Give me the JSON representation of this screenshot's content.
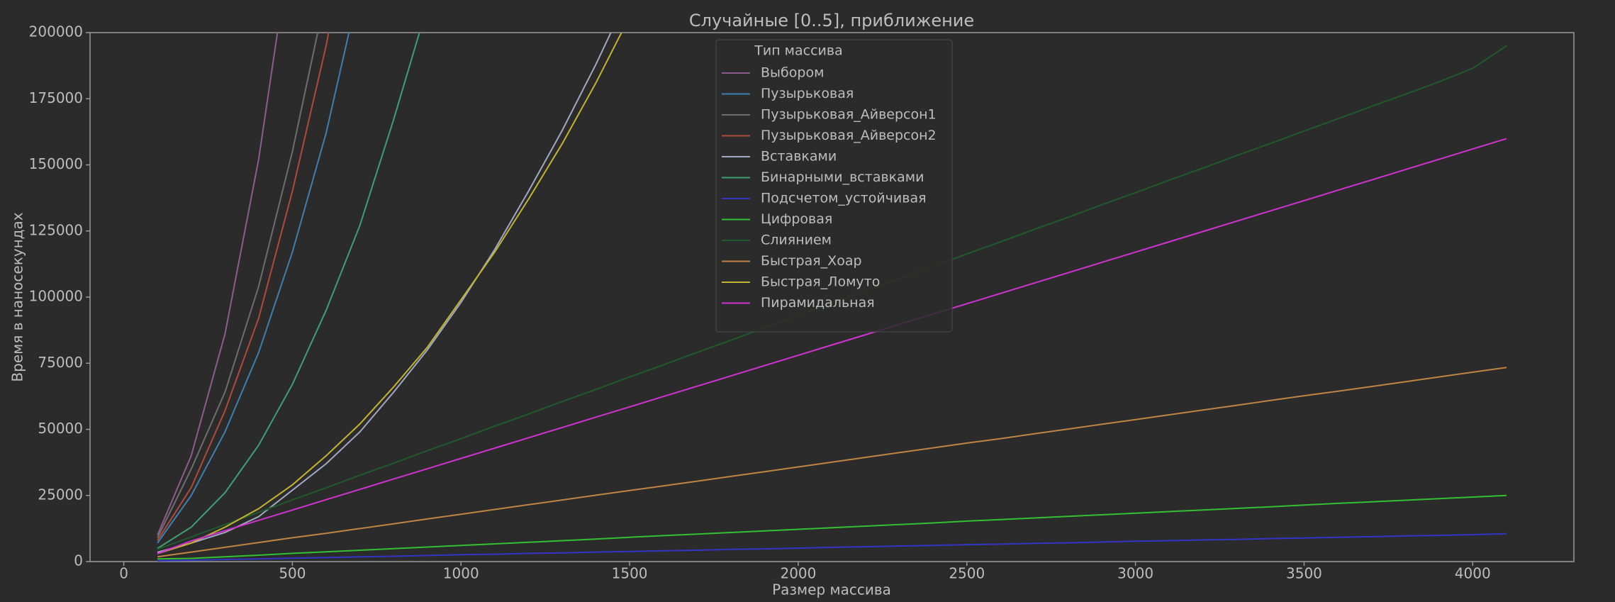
{
  "chart_data": {
    "type": "line",
    "title": "Случайные [0..5], приближение",
    "x_label": "Размер массива",
    "y_label": "Время в наносекундах",
    "legend_title": "Тип массива",
    "legend": "upper center",
    "x": [
      100,
      200,
      300,
      400,
      500,
      600,
      700,
      800,
      900,
      1000,
      1100,
      1200,
      1300,
      1400,
      1500,
      1600,
      1700,
      1800,
      1900,
      2000,
      2100,
      2200,
      2300,
      2400,
      2500,
      2600,
      2700,
      2800,
      2900,
      3000,
      3100,
      3200,
      3300,
      3400,
      3500,
      3600,
      3700,
      3800,
      3900,
      4000,
      4100
    ],
    "xlim": [
      -100,
      4300
    ],
    "xticks": [
      0,
      500,
      1000,
      1500,
      2000,
      2500,
      3000,
      3500,
      4000
    ],
    "ylim": [
      0,
      200000
    ],
    "yticks": [
      0,
      25000,
      50000,
      75000,
      100000,
      125000,
      150000,
      175000,
      200000
    ],
    "series": [
      {
        "name": "Выбором",
        "color": "#8e5c90",
        "values": [
          10000,
          40000,
          86000,
          152000,
          238000,
          null,
          null,
          null,
          null,
          null,
          null,
          null,
          null,
          null,
          null,
          null,
          null,
          null,
          null,
          null,
          null,
          null,
          null,
          null,
          null,
          null,
          null,
          null,
          null,
          null,
          null,
          null,
          null,
          null,
          null,
          null,
          null,
          null,
          null,
          null,
          null
        ]
      },
      {
        "name": "Пузырьковая",
        "color": "#3f7fb0",
        "values": [
          7000,
          25000,
          49000,
          79000,
          117000,
          162000,
          218000,
          null,
          null,
          null,
          null,
          null,
          null,
          null,
          null,
          null,
          null,
          null,
          null,
          null,
          null,
          null,
          null,
          null,
          null,
          null,
          null,
          null,
          null,
          null,
          null,
          null,
          null,
          null,
          null,
          null,
          null,
          null,
          null,
          null,
          null
        ]
      },
      {
        "name": "Пузырьковая_Айверсон1",
        "color": "#6e6e6e",
        "values": [
          9000,
          35000,
          64000,
          104000,
          155000,
          215000,
          null,
          null,
          null,
          null,
          null,
          null,
          null,
          null,
          null,
          null,
          null,
          null,
          null,
          null,
          null,
          null,
          null,
          null,
          null,
          null,
          null,
          null,
          null,
          null,
          null,
          null,
          null,
          null,
          null,
          null,
          null,
          null,
          null,
          null,
          null
        ]
      },
      {
        "name": "Пузырьковая_Айверсон2",
        "color": "#b04a3a",
        "values": [
          8000,
          28000,
          57000,
          92000,
          140000,
          195000,
          262000,
          null,
          null,
          null,
          null,
          null,
          null,
          null,
          null,
          null,
          null,
          null,
          null,
          null,
          null,
          null,
          null,
          null,
          null,
          null,
          null,
          null,
          null,
          null,
          null,
          null,
          null,
          null,
          null,
          null,
          null,
          null,
          null,
          null,
          null
        ]
      },
      {
        "name": "Вставками",
        "color": "#a0a8c4",
        "values": [
          3500,
          7000,
          11000,
          17000,
          27000,
          37000,
          49000,
          64000,
          80000,
          98000,
          118000,
          140000,
          163000,
          188000,
          215000,
          null,
          null,
          null,
          null,
          null,
          null,
          null,
          null,
          null,
          null,
          null,
          null,
          null,
          null,
          null,
          null,
          null,
          null,
          null,
          null,
          null,
          null,
          null,
          null,
          null,
          null
        ]
      },
      {
        "name": "Бинарными_вставками",
        "color": "#3f9f72",
        "values": [
          5000,
          13000,
          26000,
          44000,
          67000,
          95000,
          127000,
          167000,
          210000,
          null,
          null,
          null,
          null,
          null,
          null,
          null,
          null,
          null,
          null,
          null,
          null,
          null,
          null,
          null,
          null,
          null,
          null,
          null,
          null,
          null,
          null,
          null,
          null,
          null,
          null,
          null,
          null,
          null,
          null,
          null,
          null
        ]
      },
      {
        "name": "Подсчетом_устойчивая",
        "color": "#3434c4",
        "values": [
          300,
          500,
          800,
          1000,
          1300,
          1500,
          1800,
          2000,
          2300,
          2600,
          2800,
          3100,
          3300,
          3600,
          3800,
          4100,
          4300,
          4600,
          4800,
          5100,
          5400,
          5600,
          5900,
          6100,
          6400,
          6600,
          6900,
          7100,
          7400,
          7700,
          7900,
          8200,
          8400,
          8700,
          8900,
          9200,
          9400,
          9700,
          9900,
          10200,
          10500
        ]
      },
      {
        "name": "Цифровая",
        "color": "#33c133",
        "values": [
          1000,
          1200,
          1800,
          2400,
          3100,
          3700,
          4300,
          4900,
          5500,
          6100,
          6700,
          7300,
          7900,
          8500,
          9200,
          9800,
          10400,
          11000,
          11600,
          12200,
          12800,
          13400,
          14000,
          14600,
          15300,
          15900,
          16500,
          17100,
          17700,
          18300,
          18900,
          19500,
          20100,
          20700,
          21400,
          22000,
          22600,
          23200,
          23800,
          24400,
          25000
        ]
      },
      {
        "name": "Слиянием",
        "color": "#1f5a2c",
        "values": [
          4700,
          9300,
          14000,
          18600,
          23300,
          27900,
          32600,
          37200,
          41900,
          46500,
          51200,
          55800,
          60500,
          65100,
          69800,
          74400,
          79100,
          83700,
          88400,
          93000,
          97700,
          102300,
          107000,
          111600,
          116300,
          120900,
          125600,
          130200,
          134900,
          139500,
          144200,
          148800,
          153500,
          158100,
          162800,
          167400,
          172100,
          176700,
          181400,
          186500,
          195000
        ]
      },
      {
        "name": "Быстрая_Хоар",
        "color": "#c08444",
        "values": [
          1800,
          3600,
          5400,
          7200,
          9000,
          10700,
          12500,
          14300,
          16100,
          17900,
          19700,
          21500,
          23300,
          25100,
          26900,
          28600,
          30400,
          32200,
          34000,
          35800,
          37600,
          39400,
          41200,
          43000,
          44800,
          46500,
          48300,
          50100,
          51900,
          53700,
          55500,
          57300,
          59100,
          60900,
          62700,
          64400,
          66200,
          68000,
          69800,
          71600,
          73400
        ]
      },
      {
        "name": "Быстрая_Ломуто",
        "color": "#c4b232",
        "values": [
          3000,
          7000,
          13000,
          20000,
          29000,
          40000,
          52000,
          66000,
          81000,
          99000,
          117000,
          137000,
          158000,
          181000,
          206000,
          null,
          null,
          null,
          null,
          null,
          null,
          null,
          null,
          null,
          null,
          null,
          null,
          null,
          null,
          null,
          null,
          null,
          null,
          null,
          null,
          null,
          null,
          null,
          null,
          null,
          null
        ]
      },
      {
        "name": "Пирамидальная",
        "color": "#d232d2",
        "values": [
          3000,
          7800,
          11700,
          15600,
          19500,
          23400,
          27300,
          31200,
          35100,
          39000,
          42900,
          46800,
          50700,
          54600,
          58500,
          62400,
          66300,
          70200,
          74100,
          78000,
          81900,
          85800,
          89700,
          93600,
          97500,
          101400,
          105300,
          109200,
          113100,
          117000,
          120900,
          124800,
          128700,
          132600,
          136500,
          140400,
          144300,
          148200,
          152100,
          156000,
          159900
        ]
      }
    ]
  }
}
